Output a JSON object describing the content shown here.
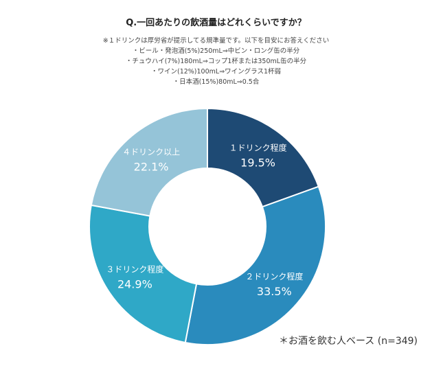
{
  "title": "Q.一回あたりの飲酒量はどれくらいですか？",
  "notes": [
    "※１ドリンクは厚労省が提示してる規準量です。以下を目安にお答えください",
    "・ビール・発泡酒(5%)250mL⇒中ビン・ロング缶の半分",
    "・チュウハイ(7%)180mL⇒コップ1杯または350mL缶の半分",
    "・ワイン(12%)100mL⇒ワイングラス1杯弱",
    "・日本酒(15%)80mL⇒0.5合"
  ],
  "footnote": "＊お酒を飲む人ベース (n=349)",
  "chart_data": {
    "type": "pie",
    "donut": true,
    "categories": [
      "１ドリンク程度",
      "２ドリンク程度",
      "３ドリンク程度",
      "４ドリンク以上"
    ],
    "values": [
      19.5,
      33.5,
      24.9,
      22.1
    ],
    "value_labels": [
      "19.5%",
      "33.5%",
      "24.9%",
      "22.1%"
    ],
    "colors": [
      "#1e4a74",
      "#2a8bbd",
      "#2fa8c7",
      "#95c4d8"
    ]
  }
}
